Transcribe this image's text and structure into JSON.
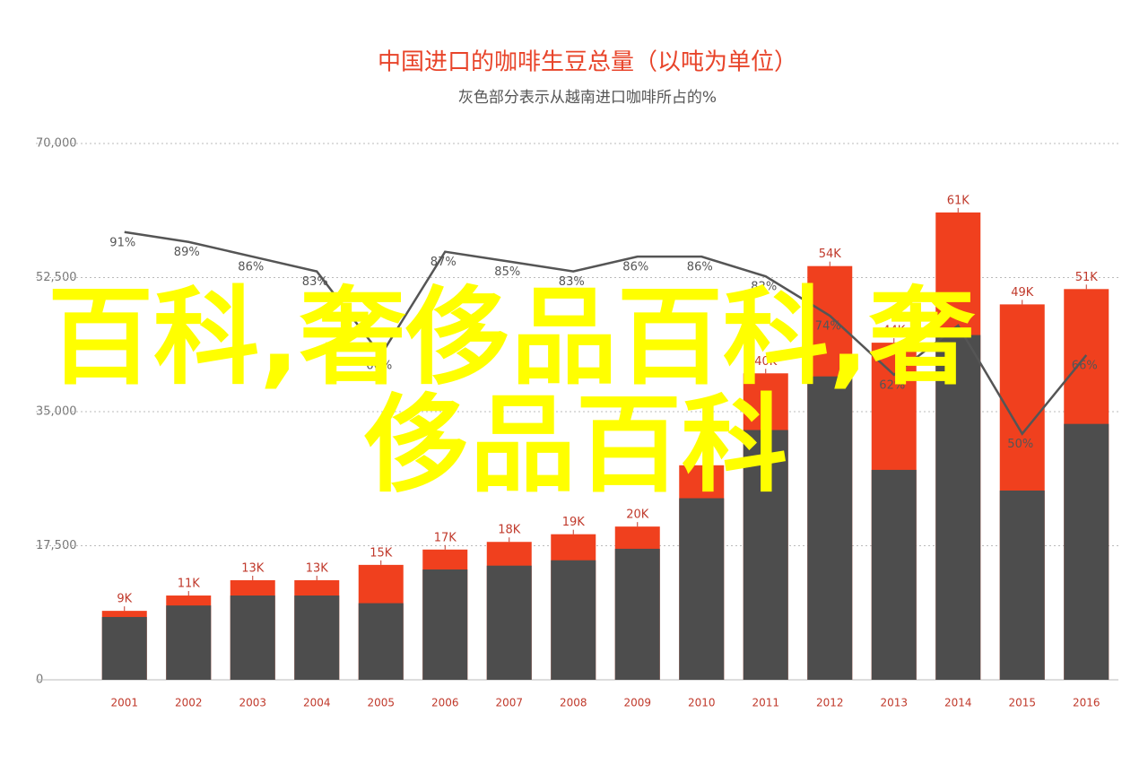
{
  "chart_data": {
    "type": "bar-line",
    "title": "中国进口的咖啡生豆总量（以吨为单位）",
    "subtitle": "灰色部分表示从越南进口咖啡所占的%",
    "categories": [
      "2001",
      "2002",
      "2003",
      "2004",
      "2005",
      "2006",
      "2007",
      "2008",
      "2009",
      "2010",
      "2011",
      "2012",
      "2013",
      "2014",
      "2015",
      "2016"
    ],
    "series": [
      {
        "color": "#f0401e",
        "values": [
          9000,
          11000,
          13000,
          13000,
          15000,
          17000,
          18000,
          19000,
          20000,
          28000,
          40000,
          54000,
          44000,
          61000,
          49000,
          51000
        ],
        "value_labels": [
          "9K",
          "11K",
          "13K",
          "13K",
          "15K",
          "17K",
          "18K",
          "19K",
          "20K",
          null,
          "40K",
          "54K",
          "44K",
          "61K",
          "49K",
          "51K"
        ]
      },
      {
        "color": "#4d4d4d",
        "values": [
          8200,
          9700,
          11000,
          11000,
          10000,
          14400,
          14900,
          15600,
          17100,
          23700,
          32600,
          39600,
          27400,
          45000,
          24700,
          33400
        ]
      },
      {
        "type": "line",
        "axis": "y2",
        "color": "#555555",
        "values": [
          91,
          89,
          86,
          83,
          66,
          87,
          85,
          83,
          86,
          86,
          82,
          74,
          62,
          72,
          50,
          66
        ],
        "value_labels": [
          "91%",
          "89%",
          "86%",
          "83%",
          "66%",
          "87%",
          "85%",
          "83%",
          "86%",
          "86%",
          "82%",
          "74%",
          "62%",
          null,
          "50%",
          "66%"
        ]
      }
    ],
    "ylim": [
      0,
      70000
    ],
    "yticks": [
      0,
      {
        "value": 17500,
        "label": "17,500"
      },
      {
        "value": 35000,
        "label": "35,000"
      },
      {
        "value": 52500,
        "label": "52,500"
      },
      {
        "value": 70000,
        "label": "70,000"
      }
    ],
    "y2lim": [
      0,
      109
    ],
    "grid": true,
    "watermark": [
      "百科,奢侈品百科,奢",
      "侈品百科"
    ]
  }
}
